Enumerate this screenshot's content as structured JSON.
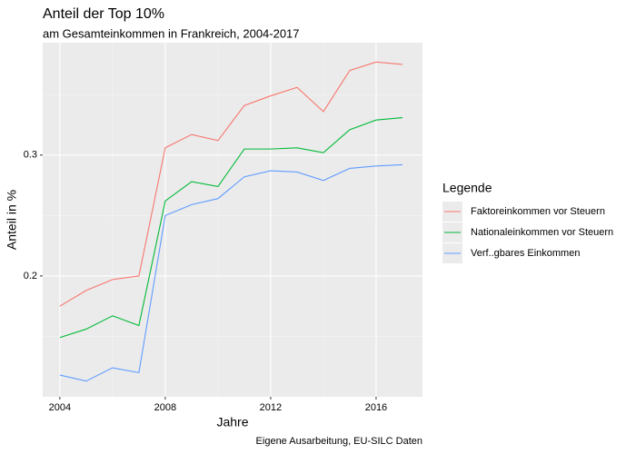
{
  "chart_data": {
    "type": "line",
    "title": "Anteil der Top 10%",
    "subtitle": "am Gesamteinkommen in Frankreich, 2004-2017",
    "x_label": "Jahre",
    "y_label": "Anteil in %",
    "caption": "Eigene Ausarbeitung, EU-SILC Daten",
    "legend_title": "Legende",
    "legend": "right",
    "grid": true,
    "x": [
      2004,
      2005,
      2006,
      2007,
      2008,
      2009,
      2010,
      2011,
      2012,
      2013,
      2014,
      2015,
      2016,
      2017
    ],
    "xlim": [
      2003.35,
      2017.76
    ],
    "xticks": [
      2004,
      2008,
      2012,
      2016
    ],
    "ylim": [
      0.1,
      0.393
    ],
    "yticks": [
      0.2,
      0.3
    ],
    "series": [
      {
        "name": "Faktoreinkommen vor Steuern",
        "color": "#f8766d",
        "values": [
          0.175,
          0.188,
          0.197,
          0.2,
          0.306,
          0.317,
          0.312,
          0.341,
          0.349,
          0.356,
          0.336,
          0.37,
          0.377,
          0.375
        ]
      },
      {
        "name": "Nationaleinkommen vor Steuern",
        "color": "#00ba38",
        "values": [
          0.149,
          0.156,
          0.167,
          0.159,
          0.262,
          0.278,
          0.274,
          0.305,
          0.305,
          0.306,
          0.302,
          0.321,
          0.329,
          0.331
        ]
      },
      {
        "name": "Verf..gbares Einkommen",
        "color": "#619cff",
        "values": [
          0.118,
          0.113,
          0.124,
          0.12,
          0.25,
          0.259,
          0.264,
          0.282,
          0.287,
          0.286,
          0.279,
          0.289,
          0.291,
          0.292
        ]
      }
    ]
  }
}
